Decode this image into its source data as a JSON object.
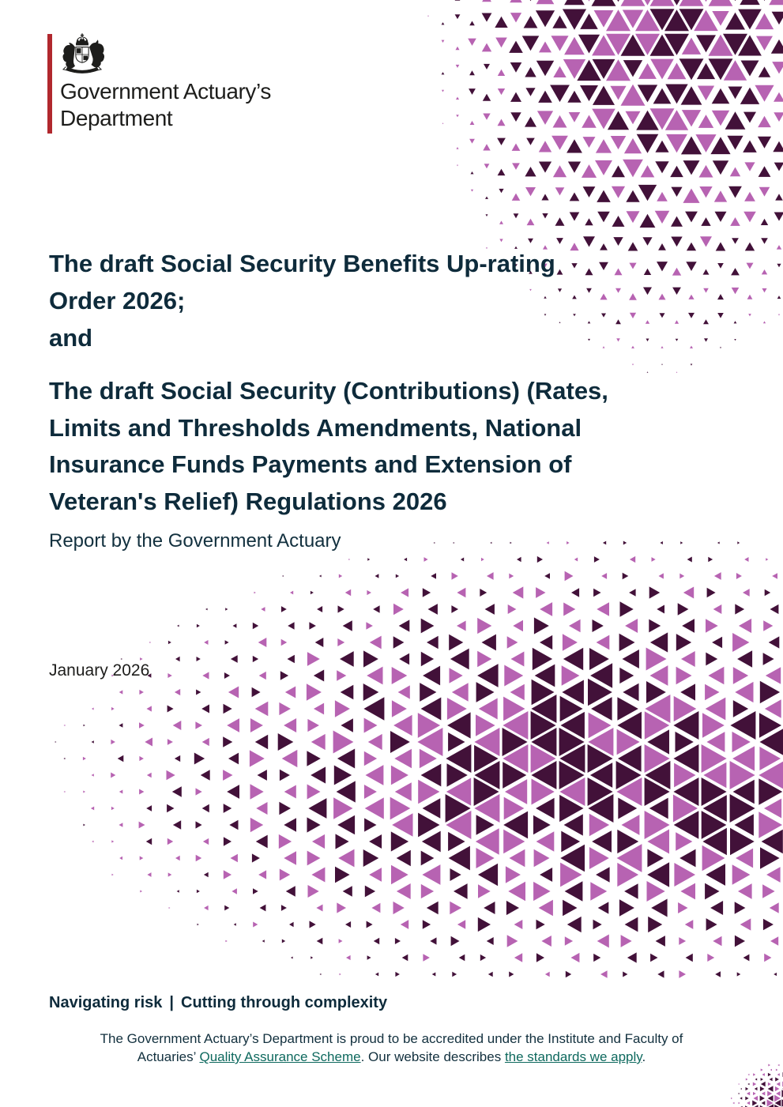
{
  "brand": {
    "line1": "Government Actuary’s",
    "line2": "Department"
  },
  "titles": {
    "t1_lines": [
      "The draft Social Security Benefits Up-rating",
      "Order 2026;"
    ],
    "connector": "and",
    "t2_lines": [
      "The draft Social Security (Contributions) (Rates,",
      "Limits and Thresholds Amendments, National",
      "Insurance Funds Payments and Extension of",
      "Veteran's Relief) Regulations 2026"
    ]
  },
  "subtitle": "Report by the Government Actuary",
  "date": "January 2026",
  "tagline": {
    "part1": "Navigating risk",
    "sep": "|",
    "part2": "Cutting through complexity"
  },
  "footer": {
    "line1": "The Government Actuary’s Department is proud to be accredited under the Institute and Faculty of",
    "line2_prefix": "Actuaries’ ",
    "link1": "Quality Assurance Scheme",
    "line2_middle": ". Our website describes ",
    "link2": "the standards we apply",
    "line2_suffix": "."
  },
  "colors": {
    "title": "#0e2b3b",
    "body_text": "#12303e",
    "link": "#0e695e",
    "logo_bar": "#b1282e",
    "logo_text": "#1d1d1b"
  },
  "pattern": {
    "magenta": "#b763b2",
    "plum": "#421139"
  }
}
